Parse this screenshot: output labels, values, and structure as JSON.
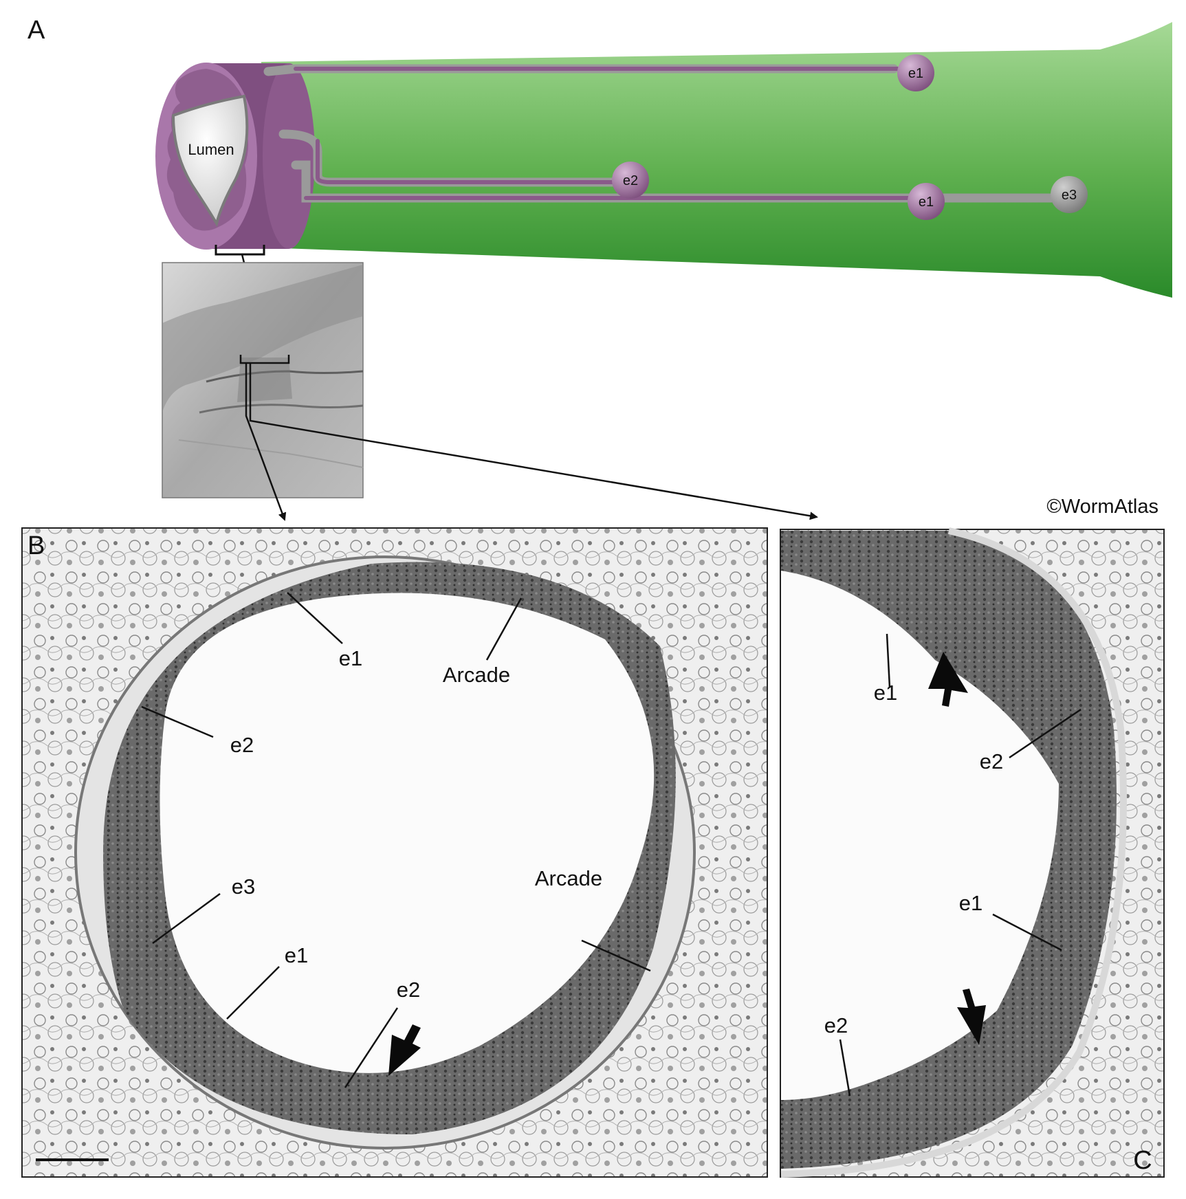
{
  "panels": {
    "a": {
      "letter": "A",
      "lumen_label": "Lumen",
      "nodes": {
        "e1_top": "e1",
        "e2": "e2",
        "e1_mid": "e1",
        "e3": "e3"
      }
    },
    "b": {
      "letter": "B",
      "labels": {
        "e1_top": "e1",
        "arcade_top": "Arcade",
        "e2_left": "e2",
        "e3": "e3",
        "arcade_right": "Arcade",
        "e1_bottom": "e1",
        "e2_bottom": "e2"
      }
    },
    "c": {
      "letter": "C",
      "labels": {
        "e1_top": "e1",
        "e2_top": "e2",
        "e1_mid": "e1",
        "e2_bottom": "e2"
      }
    }
  },
  "copyright": "©WormAtlas",
  "colors": {
    "tissue_green_dark": "#2e8b2e",
    "tissue_green_light": "#9ed48e",
    "arcade_purple": "#8a4f8a",
    "process_gray": "#9a9a9a"
  }
}
